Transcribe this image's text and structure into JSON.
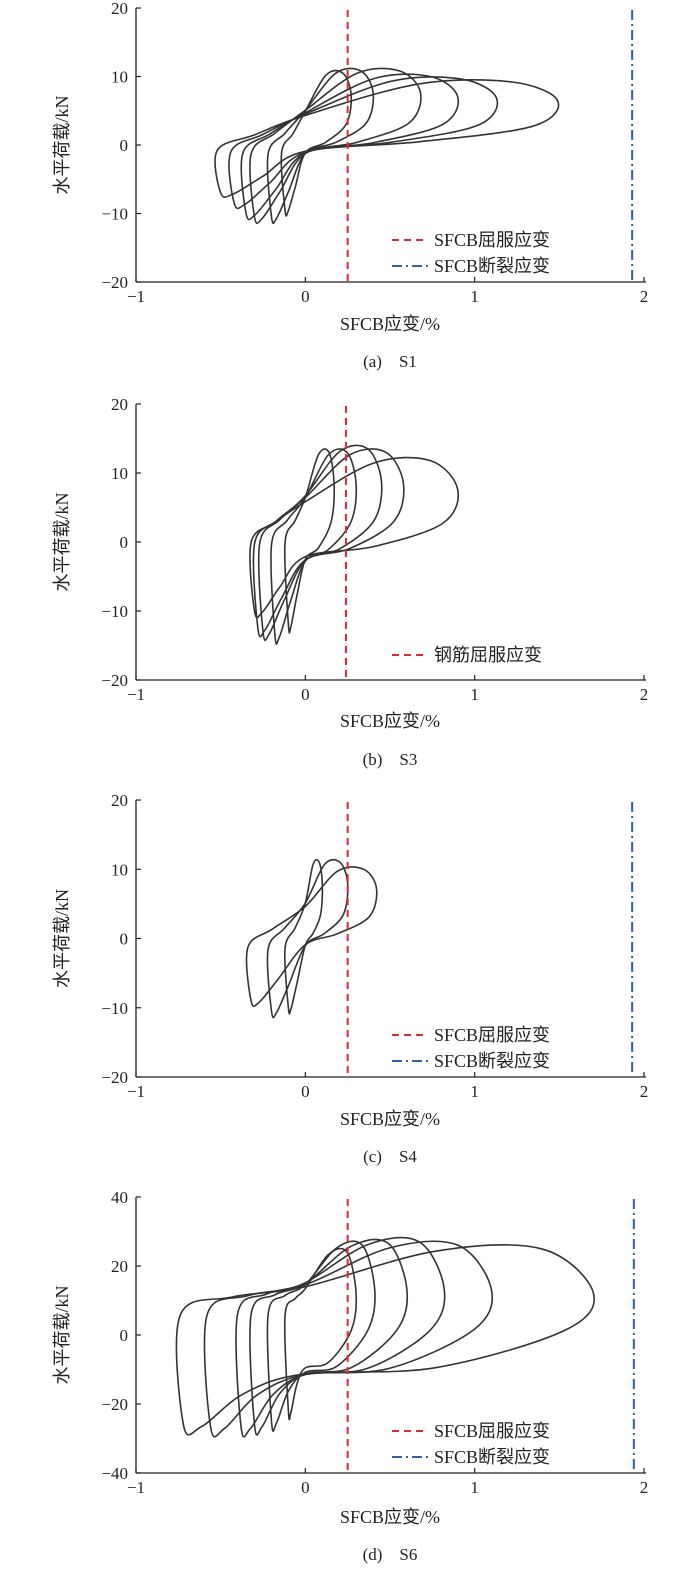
{
  "chart_data": [
    {
      "type": "line",
      "caption": "(a)　S1",
      "xlabel": "SFCB应变/%",
      "ylabel": "水平荷载/kN",
      "xlim": [
        -1,
        2
      ],
      "ylim": [
        -20,
        20
      ],
      "xticks": [
        -1,
        0,
        1,
        2
      ],
      "yticks": [
        -20,
        -10,
        0,
        10,
        20
      ],
      "xtick_labels": [
        "−1",
        "0",
        "1",
        "2"
      ],
      "ytick_labels": [
        "−20",
        "−10",
        "0",
        "10",
        "20"
      ],
      "fatness": 0.15,
      "loops": [
        {
          "neg_tip": [
            -0.12,
            -9.5
          ],
          "pos_tip": [
            0.27,
            10.5
          ]
        },
        {
          "neg_tip": [
            -0.2,
            -10.5
          ],
          "pos_tip": [
            0.4,
            10.8
          ]
        },
        {
          "neg_tip": [
            -0.3,
            -10.5
          ],
          "pos_tip": [
            0.68,
            10.8
          ]
        },
        {
          "neg_tip": [
            -0.35,
            -10
          ],
          "pos_tip": [
            0.9,
            10
          ]
        },
        {
          "neg_tip": [
            -0.42,
            -8.5
          ],
          "pos_tip": [
            1.13,
            9.6
          ]
        },
        {
          "neg_tip": [
            -0.5,
            -7
          ],
          "pos_tip": [
            1.49,
            9.2
          ]
        }
      ],
      "ref_lines": [
        {
          "name": "SFCB屈服应变",
          "x": 0.25,
          "color": "#e8262b",
          "style": "dashed"
        },
        {
          "name": "SFCB断裂应变",
          "x": 1.93,
          "color": "#2d62a6",
          "style": "dashdot"
        }
      ],
      "legend_position": "bottom-right"
    },
    {
      "type": "line",
      "caption": "(b)　S3",
      "xlabel": "SFCB应变/%",
      "ylabel": "水平荷载/kN",
      "xlim": [
        -1,
        2
      ],
      "ylim": [
        -20,
        20
      ],
      "xticks": [
        -1,
        0,
        1,
        2
      ],
      "yticks": [
        -20,
        -10,
        0,
        10,
        20
      ],
      "xtick_labels": [
        "−1",
        "0",
        "1",
        "2"
      ],
      "ytick_labels": [
        "−20",
        "−10",
        "0",
        "10",
        "20"
      ],
      "fatness": 0.35,
      "loops": [
        {
          "neg_tip": [
            -0.1,
            -12
          ],
          "pos_tip": [
            0.17,
            13
          ]
        },
        {
          "neg_tip": [
            -0.18,
            -13.5
          ],
          "pos_tip": [
            0.3,
            13
          ]
        },
        {
          "neg_tip": [
            -0.25,
            -13
          ],
          "pos_tip": [
            0.45,
            13.5
          ]
        },
        {
          "neg_tip": [
            -0.28,
            -12.5
          ],
          "pos_tip": [
            0.58,
            13
          ]
        },
        {
          "neg_tip": [
            -0.3,
            -10
          ],
          "pos_tip": [
            0.9,
            11.8
          ]
        }
      ],
      "ref_lines": [
        {
          "name": "钢筋屈服应变",
          "x": 0.24,
          "color": "#e8262b",
          "style": "dashed"
        }
      ],
      "legend_position": "bottom-right"
    },
    {
      "type": "line",
      "caption": "(c)　S4",
      "xlabel": "SFCB应变/%",
      "ylabel": "水平荷载/kN",
      "xlim": [
        -1,
        2
      ],
      "ylim": [
        -20,
        20
      ],
      "xticks": [
        -1,
        0,
        1,
        2
      ],
      "yticks": [
        -20,
        -10,
        0,
        10,
        20
      ],
      "xtick_labels": [
        "−1",
        "0",
        "1",
        "2"
      ],
      "ytick_labels": [
        "−20",
        "−10",
        "0",
        "10",
        "20"
      ],
      "fatness": 0.1,
      "loops": [
        {
          "neg_tip": [
            -0.1,
            -10
          ],
          "pos_tip": [
            0.1,
            11
          ]
        },
        {
          "neg_tip": [
            -0.2,
            -10.5
          ],
          "pos_tip": [
            0.25,
            11
          ]
        },
        {
          "neg_tip": [
            -0.32,
            -9
          ],
          "pos_tip": [
            0.42,
            10
          ]
        }
      ],
      "ref_lines": [
        {
          "name": "SFCB屈服应变",
          "x": 0.25,
          "color": "#e8262b",
          "style": "dashed"
        },
        {
          "name": "SFCB断裂应变",
          "x": 1.93,
          "color": "#2d62a6",
          "style": "dashdot"
        }
      ],
      "legend_position": "bottom-right"
    },
    {
      "type": "line",
      "caption": "(d)　S6",
      "xlabel": "SFCB应变/%",
      "ylabel": "水平荷载/kN",
      "xlim": [
        -1,
        2
      ],
      "ylim": [
        -40,
        40
      ],
      "xticks": [
        -1,
        0,
        1,
        2
      ],
      "yticks": [
        -40,
        -20,
        0,
        20,
        40
      ],
      "xtick_labels": [
        "−1",
        "0",
        "1",
        "2"
      ],
      "ytick_labels": [
        "−40",
        "−20",
        "0",
        "20",
        "40"
      ],
      "fatness": 0.85,
      "loops": [
        {
          "neg_tip": [
            -0.1,
            -22
          ],
          "pos_tip": [
            0.3,
            24
          ]
        },
        {
          "neg_tip": [
            -0.2,
            -25
          ],
          "pos_tip": [
            0.41,
            26
          ]
        },
        {
          "neg_tip": [
            -0.3,
            -26
          ],
          "pos_tip": [
            0.6,
            26.5
          ]
        },
        {
          "neg_tip": [
            -0.38,
            -26.5
          ],
          "pos_tip": [
            0.82,
            27
          ]
        },
        {
          "neg_tip": [
            -0.56,
            -26.5
          ],
          "pos_tip": [
            1.1,
            26
          ]
        },
        {
          "neg_tip": [
            -0.72,
            -26
          ],
          "pos_tip": [
            1.7,
            25
          ]
        }
      ],
      "ref_lines": [
        {
          "name": "SFCB屈服应变",
          "x": 0.25,
          "color": "#e8262b",
          "style": "dashed"
        },
        {
          "name": "SFCB断裂应变",
          "x": 1.94,
          "color": "#2d62a6",
          "style": "dashdot"
        }
      ],
      "legend_position": "bottom-right"
    }
  ]
}
